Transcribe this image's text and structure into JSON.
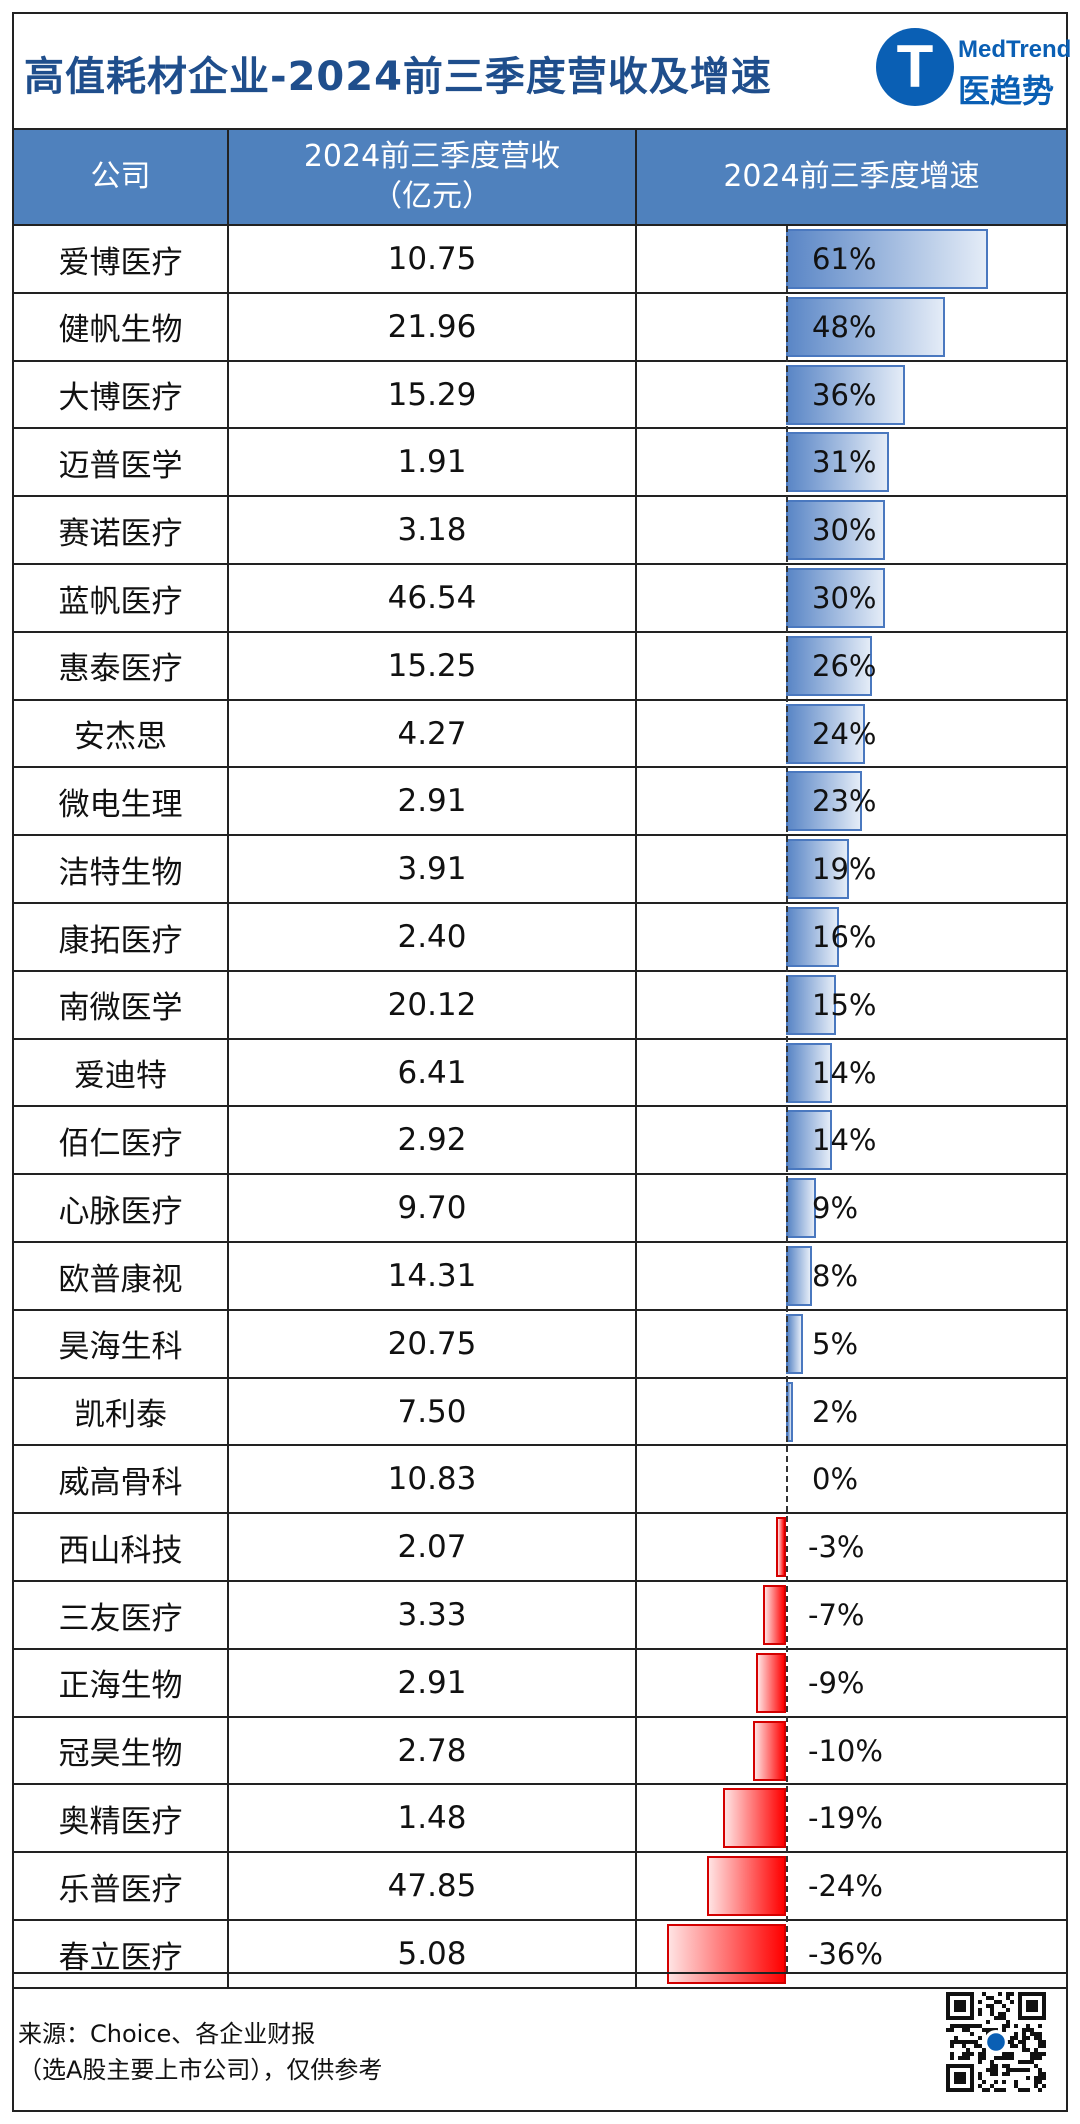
{
  "title": "高值耗材企业-2024前三季度营收及增速",
  "logo": {
    "en": "MedTrend",
    "cn": "医趋势",
    "mark": "T"
  },
  "colors": {
    "header_bg": "#4f81bd",
    "title": "#1f4e8c",
    "positive_bar": "#4a78bf",
    "negative_bar": "#ff0000"
  },
  "columns": {
    "company": "公司",
    "revenue_line1": "2024前三季度营收",
    "revenue_line2": "（亿元）",
    "growth": "2024前三季度增速"
  },
  "chart_data": {
    "type": "table",
    "title": "高值耗材企业-2024前三季度营收及增速",
    "growth_unit": "%",
    "rows": [
      {
        "company": "爱博医疗",
        "revenue": "10.75",
        "growth": 61,
        "growth_label": "61%"
      },
      {
        "company": "健帆生物",
        "revenue": "21.96",
        "growth": 48,
        "growth_label": "48%"
      },
      {
        "company": "大博医疗",
        "revenue": "15.29",
        "growth": 36,
        "growth_label": "36%"
      },
      {
        "company": "迈普医学",
        "revenue": "1.91",
        "growth": 31,
        "growth_label": "31%"
      },
      {
        "company": "赛诺医疗",
        "revenue": "3.18",
        "growth": 30,
        "growth_label": "30%"
      },
      {
        "company": "蓝帆医疗",
        "revenue": "46.54",
        "growth": 30,
        "growth_label": "30%"
      },
      {
        "company": "惠泰医疗",
        "revenue": "15.25",
        "growth": 26,
        "growth_label": "26%"
      },
      {
        "company": "安杰思",
        "revenue": "4.27",
        "growth": 24,
        "growth_label": "24%"
      },
      {
        "company": "微电生理",
        "revenue": "2.91",
        "growth": 23,
        "growth_label": "23%"
      },
      {
        "company": "洁特生物",
        "revenue": "3.91",
        "growth": 19,
        "growth_label": "19%"
      },
      {
        "company": "康拓医疗",
        "revenue": "2.40",
        "growth": 16,
        "growth_label": "16%"
      },
      {
        "company": "南微医学",
        "revenue": "20.12",
        "growth": 15,
        "growth_label": "15%"
      },
      {
        "company": "爱迪特",
        "revenue": "6.41",
        "growth": 14,
        "growth_label": "14%"
      },
      {
        "company": "佰仁医疗",
        "revenue": "2.92",
        "growth": 14,
        "growth_label": "14%"
      },
      {
        "company": "心脉医疗",
        "revenue": "9.70",
        "growth": 9,
        "growth_label": "9%"
      },
      {
        "company": "欧普康视",
        "revenue": "14.31",
        "growth": 8,
        "growth_label": "8%"
      },
      {
        "company": "昊海生科",
        "revenue": "20.75",
        "growth": 5,
        "growth_label": "5%"
      },
      {
        "company": "凯利泰",
        "revenue": "7.50",
        "growth": 2,
        "growth_label": "2%"
      },
      {
        "company": "威高骨科",
        "revenue": "10.83",
        "growth": 0,
        "growth_label": "0%"
      },
      {
        "company": "西山科技",
        "revenue": "2.07",
        "growth": -3,
        "growth_label": "-3%"
      },
      {
        "company": "三友医疗",
        "revenue": "3.33",
        "growth": -7,
        "growth_label": "-7%"
      },
      {
        "company": "正海生物",
        "revenue": "2.91",
        "growth": -9,
        "growth_label": "-9%"
      },
      {
        "company": "冠昊生物",
        "revenue": "2.78",
        "growth": -10,
        "growth_label": "-10%"
      },
      {
        "company": "奥精医疗",
        "revenue": "1.48",
        "growth": -19,
        "growth_label": "-19%"
      },
      {
        "company": "乐普医疗",
        "revenue": "47.85",
        "growth": -24,
        "growth_label": "-24%"
      },
      {
        "company": "春立医疗",
        "revenue": "5.08",
        "growth": -36,
        "growth_label": "-36%"
      }
    ]
  },
  "footer": {
    "source_line1": "来源：Choice、各企业财报",
    "source_line2": "（选A股主要上市公司），仅供参考"
  }
}
